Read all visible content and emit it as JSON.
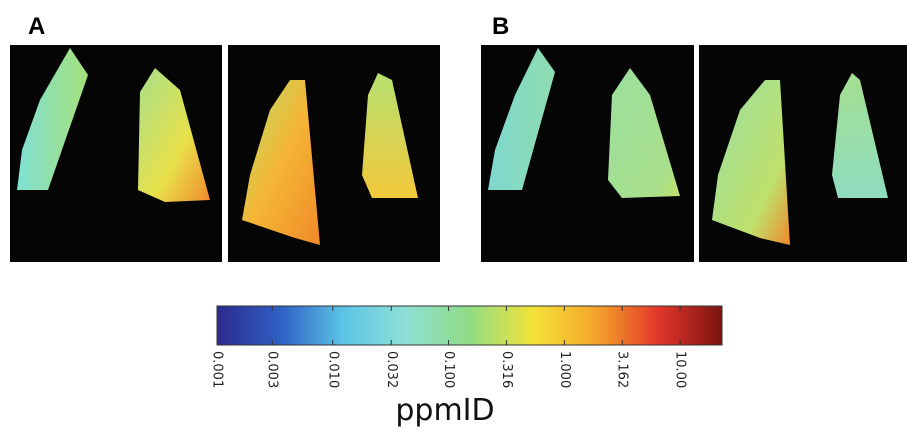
{
  "panels": [
    {
      "label": "A"
    },
    {
      "label": "B"
    }
  ],
  "colorbar": {
    "label": "ppmID",
    "scale": "log",
    "lim": [
      0.001,
      23
    ],
    "ticks": [
      0.001,
      0.003,
      {
        "value": 0.01,
        "label": "0.010"
      },
      0.032,
      {
        "value": 0.1,
        "label": "0.100"
      },
      0.316,
      {
        "value": 1,
        "label": "1.000"
      },
      3.162,
      {
        "value": 10,
        "label": "10.00"
      }
    ],
    "colors": [
      "#2b2a8c",
      "#2f5fc4",
      "#5bc4e6",
      "#8fe0d6",
      "#8fdc84",
      "#f3e33a",
      "#f5a52a",
      "#e2352a",
      "#7a1410"
    ]
  }
}
